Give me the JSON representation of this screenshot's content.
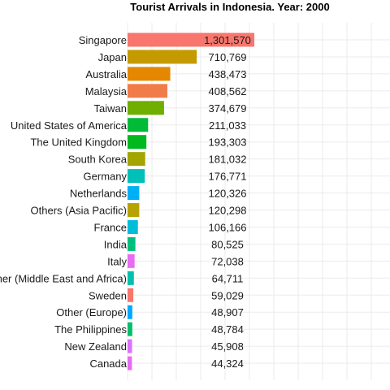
{
  "chart_data": {
    "type": "bar",
    "orientation": "horizontal",
    "title": "Tourist Arrivals in Indonesia. Year: 2000",
    "xlabel": "",
    "ylabel": "",
    "xlim": [
      0,
      1301570
    ],
    "grid": true,
    "legend": "none",
    "categories": [
      "Singapore",
      "Japan",
      "Australia",
      "Malaysia",
      "Taiwan",
      "United States of America",
      "The United Kingdom",
      "South Korea",
      "Germany",
      "Netherlands",
      "Others (Asia Pacific)",
      "France",
      "India",
      "Italy",
      "Other (Middle East and Africa)",
      "Sweden",
      "Other (Europe)",
      "The Philippines",
      "New Zealand",
      "Canada"
    ],
    "values": [
      1301570,
      710769,
      438473,
      408562,
      374679,
      211033,
      193303,
      181032,
      176771,
      120326,
      120298,
      106166,
      80525,
      72038,
      64711,
      59029,
      48907,
      48784,
      45908,
      44324
    ],
    "value_labels": [
      "1,301,570",
      "710,769",
      "438,473",
      "408,562",
      "374,679",
      "211,033",
      "193,303",
      "181,032",
      "176,771",
      "120,326",
      "120,298",
      "106,166",
      "80,525",
      "72,038",
      "64,711",
      "59,029",
      "48,907",
      "48,784",
      "45,908",
      "44,324"
    ],
    "colors": [
      "#f8766d",
      "#c49a00",
      "#e58700",
      "#f07c4a",
      "#6eaf00",
      "#00ba38",
      "#00b81f",
      "#a3a500",
      "#00c0b8",
      "#00b0f6",
      "#b7a300",
      "#00bcd8",
      "#00bf7d",
      "#e76bf3",
      "#00c0af",
      "#f8766d",
      "#00a9ff",
      "#00be6c",
      "#dc71fa",
      "#e76bf3"
    ]
  }
}
